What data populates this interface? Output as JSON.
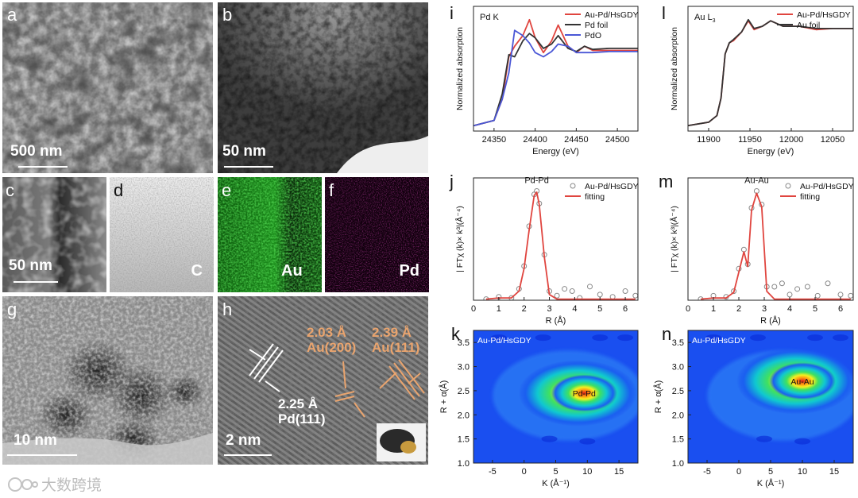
{
  "panels": {
    "a": {
      "label": "a",
      "scale": "500 nm"
    },
    "b": {
      "label": "b",
      "scale": "50 nm"
    },
    "c": {
      "label": "c",
      "scale": "50 nm"
    },
    "d": {
      "label": "d",
      "element": "C"
    },
    "e": {
      "label": "e",
      "element": "Au"
    },
    "f": {
      "label": "f",
      "element": "Pd"
    },
    "g": {
      "label": "g",
      "scale": "10 nm"
    },
    "h": {
      "label": "h",
      "scale": "2 nm",
      "ann1_d": "2.03 Å",
      "ann1_p": "Au(200)",
      "ann2_d": "2.39 Å",
      "ann2_p": "Au(111)",
      "ann3_d": "2.25 Å",
      "ann3_p": "Pd(111)"
    }
  },
  "watermark": "大数跨境",
  "colors": {
    "red": "#e0453f",
    "black": "#333333",
    "blue": "#4a57d6",
    "orange": "#e9a46e"
  },
  "chart_data": [
    {
      "panel": "i",
      "type": "line",
      "note": "Pd K",
      "xlabel": "Energy (eV)",
      "ylabel": "Normalized absorption",
      "xlim": [
        24325,
        24525
      ],
      "xticks": [
        24350,
        24400,
        24450,
        24500
      ],
      "series": [
        {
          "name": "Au-Pd/HsGDY",
          "color": "#e0453f",
          "x": [
            24325,
            24350,
            24360,
            24368,
            24375,
            24385,
            24393,
            24400,
            24410,
            24420,
            24428,
            24440,
            24450,
            24460,
            24470,
            24490,
            24525
          ],
          "y": [
            0.05,
            0.1,
            0.3,
            0.7,
            0.8,
            0.9,
            1.05,
            0.88,
            0.74,
            0.85,
            1.0,
            0.8,
            0.74,
            0.8,
            0.76,
            0.76,
            0.76
          ]
        },
        {
          "name": "Pd foil",
          "color": "#333333",
          "x": [
            24325,
            24350,
            24360,
            24368,
            24375,
            24385,
            24393,
            24400,
            24410,
            24420,
            24428,
            24440,
            24450,
            24460,
            24470,
            24490,
            24525
          ],
          "y": [
            0.05,
            0.1,
            0.35,
            0.72,
            0.7,
            0.85,
            0.92,
            0.88,
            0.78,
            0.82,
            0.9,
            0.78,
            0.75,
            0.8,
            0.77,
            0.78,
            0.78
          ]
        },
        {
          "name": "PdO",
          "color": "#4a57d6",
          "x": [
            24325,
            24350,
            24360,
            24368,
            24375,
            24385,
            24393,
            24400,
            24410,
            24420,
            24428,
            24440,
            24450,
            24460,
            24470,
            24490,
            24525
          ],
          "y": [
            0.05,
            0.1,
            0.3,
            0.55,
            0.95,
            0.9,
            0.83,
            0.74,
            0.7,
            0.75,
            0.82,
            0.8,
            0.74,
            0.74,
            0.74,
            0.75,
            0.75
          ]
        }
      ]
    },
    {
      "panel": "l",
      "type": "line",
      "note": "Au L3",
      "xlabel": "Energy (eV)",
      "ylabel": "Normalized absorption",
      "xlim": [
        11875,
        12075
      ],
      "xticks": [
        11900,
        11950,
        12000,
        12050
      ],
      "series": [
        {
          "name": "Au-Pd/HsGDY",
          "color": "#e0453f",
          "x": [
            11875,
            11900,
            11910,
            11915,
            11920,
            11925,
            11930,
            11940,
            11948,
            11955,
            11965,
            11975,
            11990,
            12010,
            12030,
            12050,
            12075
          ],
          "y": [
            0.05,
            0.08,
            0.14,
            0.3,
            0.7,
            0.8,
            0.82,
            0.9,
            1.0,
            0.92,
            0.95,
            1.0,
            0.95,
            0.95,
            0.92,
            0.93,
            0.93
          ]
        },
        {
          "name": "Au foil",
          "color": "#333333",
          "x": [
            11875,
            11900,
            11910,
            11915,
            11920,
            11925,
            11930,
            11940,
            11948,
            11955,
            11965,
            11975,
            11990,
            12010,
            12030,
            12050,
            12075
          ],
          "y": [
            0.05,
            0.08,
            0.14,
            0.3,
            0.7,
            0.8,
            0.83,
            0.9,
            1.01,
            0.93,
            0.95,
            1.0,
            0.95,
            0.95,
            0.93,
            0.93,
            0.93
          ]
        }
      ]
    },
    {
      "panel": "j",
      "type": "line",
      "xlabel": "R (Å)",
      "ylabel": "| FTχ (k)× k³|(Å⁻⁴)",
      "peak_label": "Pd-Pd",
      "xlim": [
        0,
        6.5
      ],
      "xticks": [
        0,
        1,
        2,
        3,
        4,
        5,
        6
      ],
      "series": [
        {
          "name": "Au-Pd/HsGDY",
          "color": "#888888",
          "marker": "circle",
          "x": [
            0.5,
            1.0,
            1.5,
            1.8,
            2.0,
            2.2,
            2.4,
            2.5,
            2.6,
            2.8,
            3.0,
            3.3,
            3.6,
            3.9,
            4.2,
            4.6,
            5.0,
            5.5,
            6.0,
            6.4
          ],
          "y": [
            0.01,
            0.03,
            0.02,
            0.1,
            0.3,
            0.65,
            0.93,
            0.96,
            0.85,
            0.4,
            0.08,
            0.04,
            0.1,
            0.08,
            0.02,
            0.12,
            0.05,
            0.03,
            0.08,
            0.04
          ]
        },
        {
          "name": "fitting",
          "color": "#e0453f",
          "x": [
            0.5,
            1.0,
            1.5,
            1.8,
            2.0,
            2.2,
            2.4,
            2.5,
            2.6,
            2.8,
            3.0,
            3.3,
            3.6,
            3.9,
            4.2,
            4.6,
            5.0,
            5.5,
            6.0,
            6.4
          ],
          "y": [
            0.01,
            0.02,
            0.02,
            0.08,
            0.28,
            0.62,
            0.92,
            0.95,
            0.84,
            0.38,
            0.05,
            0.01,
            0.01,
            0.01,
            0.01,
            0.01,
            0.01,
            0.01,
            0.01,
            0.01
          ]
        }
      ]
    },
    {
      "panel": "m",
      "type": "line",
      "xlabel": "R (Å)",
      "ylabel": "| FTχ (k)× k³|(Å⁻⁴)",
      "peak_label": "Au-Au",
      "xlim": [
        0,
        6.5
      ],
      "xticks": [
        0,
        1,
        2,
        3,
        4,
        5,
        6
      ],
      "series": [
        {
          "name": "Au-Pd/HsGDY",
          "color": "#888888",
          "marker": "circle",
          "x": [
            0.5,
            1.0,
            1.5,
            1.8,
            2.0,
            2.2,
            2.35,
            2.5,
            2.7,
            2.9,
            3.1,
            3.4,
            3.7,
            4.0,
            4.3,
            4.7,
            5.1,
            5.5,
            6.0,
            6.4
          ],
          "y": [
            0.01,
            0.04,
            0.03,
            0.08,
            0.28,
            0.45,
            0.32,
            0.82,
            0.97,
            0.85,
            0.12,
            0.12,
            0.15,
            0.05,
            0.1,
            0.12,
            0.04,
            0.15,
            0.05,
            0.04
          ]
        },
        {
          "name": "fitting",
          "color": "#e0453f",
          "x": [
            0.5,
            1.0,
            1.5,
            1.8,
            2.0,
            2.2,
            2.35,
            2.5,
            2.7,
            2.9,
            3.1,
            3.4,
            3.7,
            4.0,
            4.3,
            4.7,
            5.1,
            5.5,
            6.0,
            6.4
          ],
          "y": [
            0.01,
            0.02,
            0.02,
            0.07,
            0.25,
            0.43,
            0.3,
            0.8,
            0.95,
            0.83,
            0.08,
            0.01,
            0.01,
            0.01,
            0.01,
            0.01,
            0.01,
            0.01,
            0.01,
            0.01
          ]
        }
      ]
    },
    {
      "panel": "k",
      "type": "heatmap",
      "title": "Au-Pd/HsGDY",
      "hot_label": "Pd-Pd",
      "xlabel": "K (Å⁻¹)",
      "ylabel": "R + α(Å)",
      "xlim": [
        -8,
        18
      ],
      "ylim": [
        1.0,
        3.75
      ],
      "xticks": [
        -5,
        0,
        5,
        10,
        15
      ],
      "yticks": [
        1.0,
        1.5,
        2.0,
        2.5,
        3.0,
        3.5
      ],
      "maximum": [
        9.5,
        2.45
      ]
    },
    {
      "panel": "n",
      "type": "heatmap",
      "title": "Au-Pd/HsGDY",
      "hot_label": "Au-Au",
      "xlabel": "K (Å⁻¹)",
      "ylabel": "R + α(Å)",
      "xlim": [
        -8,
        18
      ],
      "ylim": [
        1.0,
        3.75
      ],
      "xticks": [
        -5,
        0,
        5,
        10,
        15
      ],
      "yticks": [
        1.0,
        1.5,
        2.0,
        2.5,
        3.0,
        3.5
      ],
      "maximum": [
        10,
        2.7
      ]
    }
  ]
}
